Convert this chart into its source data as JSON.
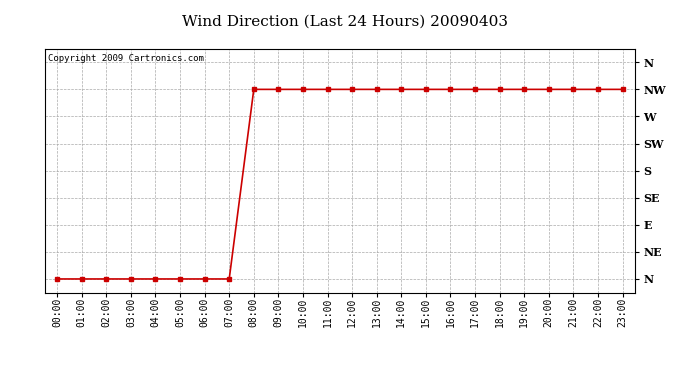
{
  "title": "Wind Direction (Last 24 Hours) 20090403",
  "copyright_text": "Copyright 2009 Cartronics.com",
  "y_labels": [
    "N",
    "NE",
    "E",
    "SE",
    "S",
    "SW",
    "W",
    "NW",
    "N"
  ],
  "y_values": [
    0,
    1,
    2,
    3,
    4,
    5,
    6,
    7,
    8
  ],
  "x_labels": [
    "00:00",
    "01:00",
    "02:00",
    "03:00",
    "04:00",
    "05:00",
    "06:00",
    "07:00",
    "08:00",
    "09:00",
    "10:00",
    "11:00",
    "12:00",
    "13:00",
    "14:00",
    "15:00",
    "16:00",
    "17:00",
    "18:00",
    "19:00",
    "20:00",
    "21:00",
    "22:00",
    "23:00"
  ],
  "x_values": [
    0,
    1,
    2,
    3,
    4,
    5,
    6,
    7,
    8,
    9,
    10,
    11,
    12,
    13,
    14,
    15,
    16,
    17,
    18,
    19,
    20,
    21,
    22,
    23
  ],
  "data_y": [
    0,
    0,
    0,
    0,
    0,
    0,
    0,
    0,
    7,
    7,
    7,
    7,
    7,
    7,
    7,
    7,
    7,
    7,
    7,
    7,
    7,
    7,
    7,
    7
  ],
  "line_color": "#cc0000",
  "marker": "s",
  "marker_size": 2.5,
  "background_color": "#ffffff",
  "grid_color": "#aaaaaa",
  "title_fontsize": 11,
  "copyright_fontsize": 6.5,
  "ylabel_fontsize": 8,
  "xlabel_fontsize": 7
}
